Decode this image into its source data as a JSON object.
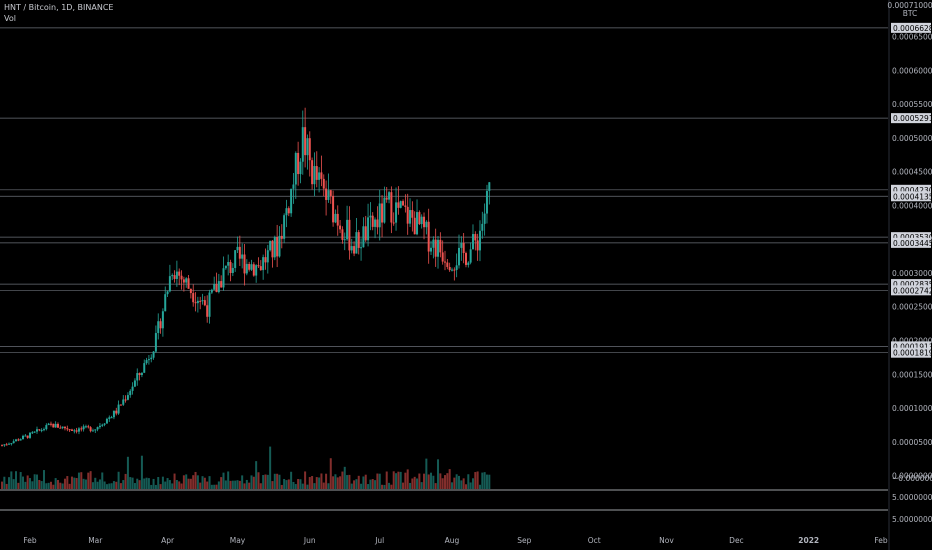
{
  "header": {
    "title": "HNT / Bitcoin, 1D, BINANCE",
    "volume_label": "Vol"
  },
  "axis": {
    "currency": "BTC"
  },
  "colors": {
    "background": "#000000",
    "up": "#26a69a",
    "down": "#ef5350",
    "grid_level": "#6b6f78",
    "axis_text": "#b2b5be",
    "level_label_bg": "#d1d4dc"
  },
  "chart_data": {
    "type": "candlestick",
    "x_axis": {
      "type": "time",
      "tick_labels": [
        "Feb",
        "Mar",
        "Apr",
        "May",
        "Jun",
        "Jul",
        "Aug",
        "Sep",
        "Oct",
        "Nov",
        "Dec",
        "2022",
        "Feb"
      ]
    },
    "y_axis": {
      "unit": "BTC",
      "range": [
        -5e-06,
        0.00067
      ],
      "top_label": "0.00071000",
      "ticks": [
        "0.00065000",
        "0.00060000",
        "0.00055000",
        "0.00050000",
        "0.00045000",
        "0.00040000",
        "0.00035000",
        "0.00030000",
        "0.00025000",
        "0.00020000",
        "0.00015000",
        "0.00010000",
        "0.00005000",
        "0.00000000"
      ],
      "zero_label": "−0.00000000"
    },
    "price_levels": [
      "0.00066281",
      "0.00052917",
      "0.00042308",
      "0.00041350",
      "0.00035300",
      "0.00034455",
      "0.00028350",
      "0.00027428",
      "0.00019130",
      "0.00018197"
    ],
    "lower_pane": {
      "ticks": [
        "5.00000000",
        "5.00000000"
      ]
    },
    "trend_points": [
      {
        "date": "2021-01-20",
        "close": 4.5e-05
      },
      {
        "date": "2021-02-01",
        "close": 6e-05
      },
      {
        "date": "2021-02-10",
        "close": 7.5e-05
      },
      {
        "date": "2021-02-20",
        "close": 6.8e-05
      },
      {
        "date": "2021-03-01",
        "close": 7e-05
      },
      {
        "date": "2021-03-10",
        "close": 9.5e-05
      },
      {
        "date": "2021-03-20",
        "close": 0.00015
      },
      {
        "date": "2021-03-27",
        "close": 0.0002
      },
      {
        "date": "2021-04-03",
        "close": 0.00031
      },
      {
        "date": "2021-04-10",
        "close": 0.00028
      },
      {
        "date": "2021-04-18",
        "close": 0.00025
      },
      {
        "date": "2021-04-25",
        "close": 0.0003
      },
      {
        "date": "2021-05-01",
        "close": 0.00032
      },
      {
        "date": "2021-05-10",
        "close": 0.00031
      },
      {
        "date": "2021-05-18",
        "close": 0.00034
      },
      {
        "date": "2021-05-24",
        "close": 0.00042
      },
      {
        "date": "2021-05-29",
        "close": 0.0005
      },
      {
        "date": "2021-06-02",
        "close": 0.00045
      },
      {
        "date": "2021-06-10",
        "close": 0.0004
      },
      {
        "date": "2021-06-20",
        "close": 0.00034
      },
      {
        "date": "2021-06-28",
        "close": 0.00037
      },
      {
        "date": "2021-07-05",
        "close": 0.0004
      },
      {
        "date": "2021-07-15",
        "close": 0.00038
      },
      {
        "date": "2021-07-25",
        "close": 0.00034
      },
      {
        "date": "2021-08-01",
        "close": 0.00032
      },
      {
        "date": "2021-08-08",
        "close": 0.00033
      },
      {
        "date": "2021-08-12",
        "close": 0.00035
      },
      {
        "date": "2021-08-15",
        "close": 0.00039
      },
      {
        "date": "2021-08-18",
        "close": 0.00044
      }
    ]
  }
}
